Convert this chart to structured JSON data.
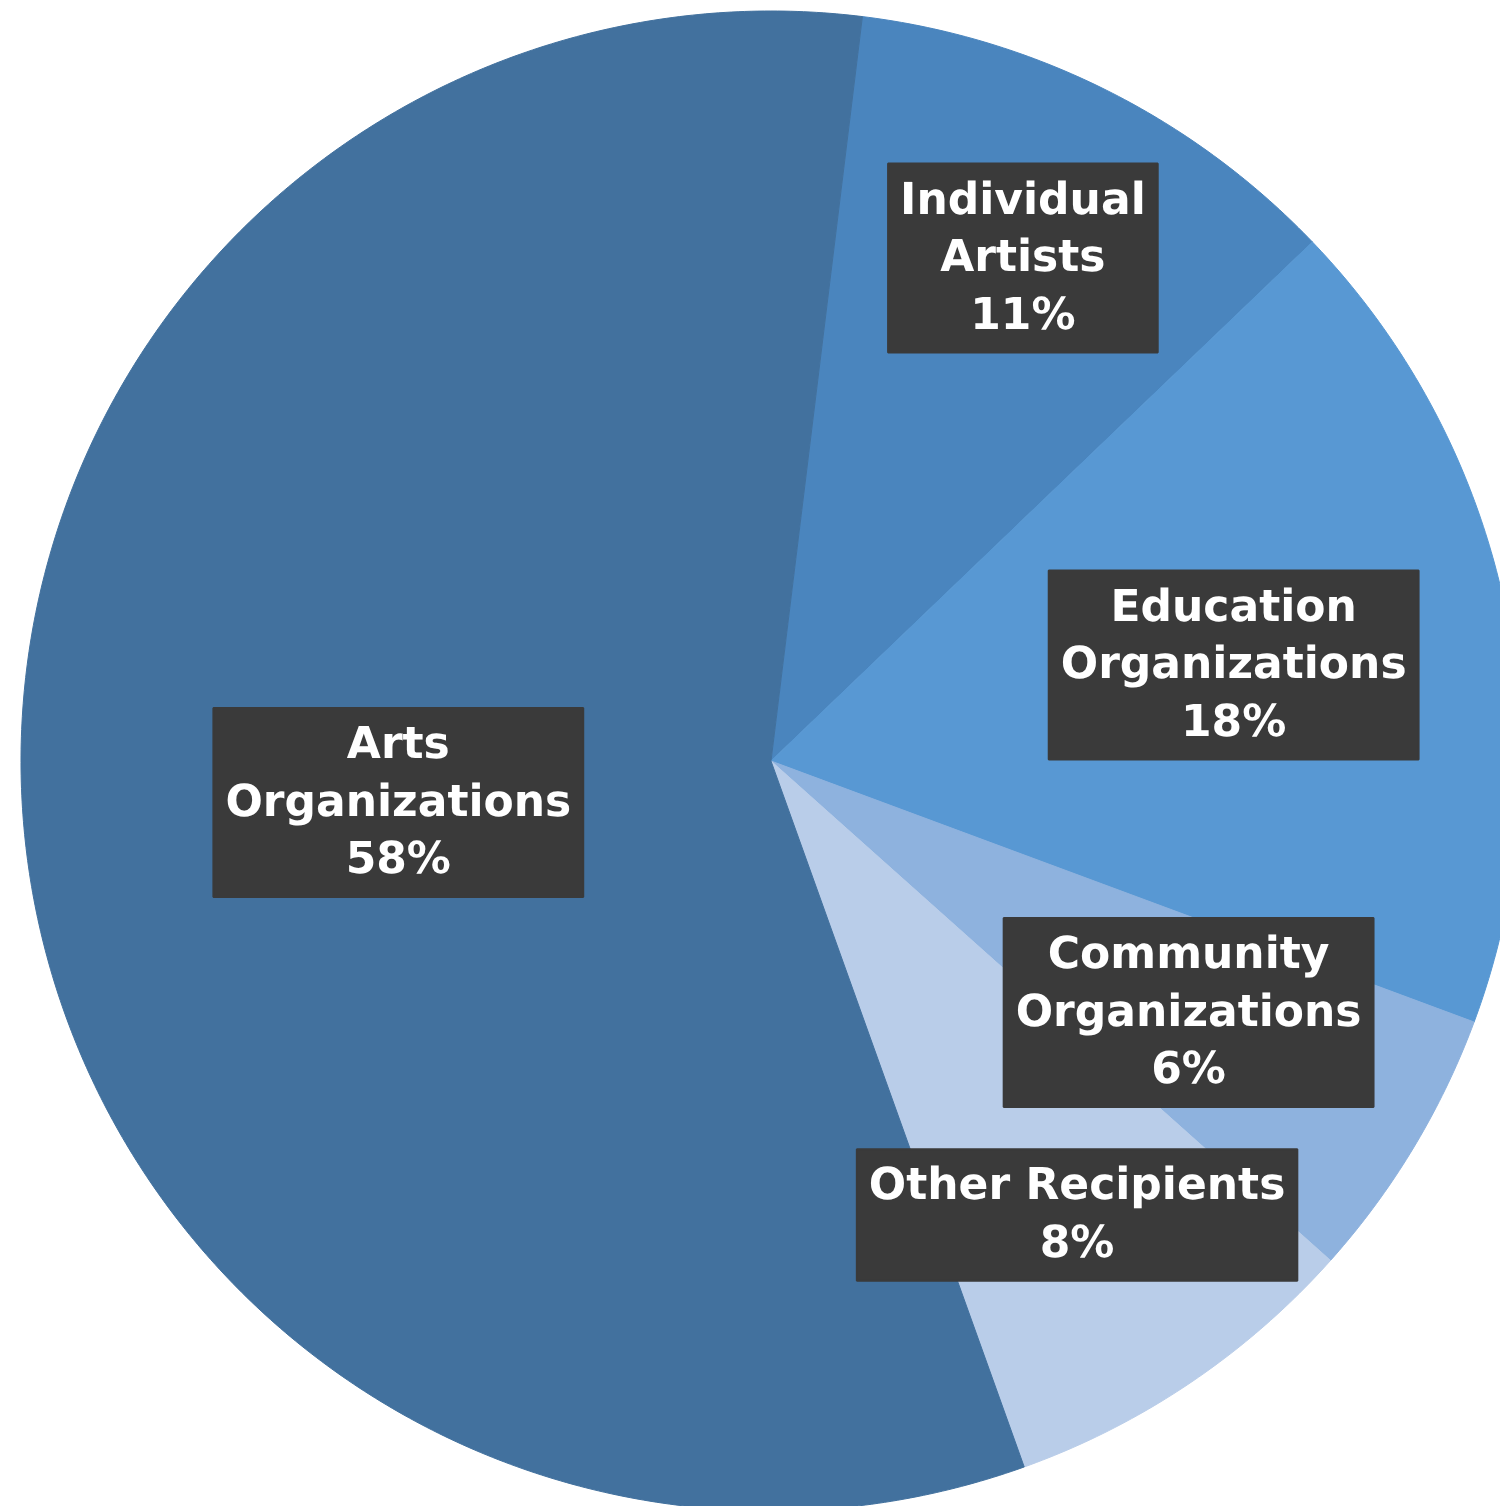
{
  "chart_data": {
    "type": "pie",
    "categories": [
      "Individual\nArtists",
      "Education\nOrganizations",
      "Community\nOrganizations",
      "Other Recipients",
      "Arts\nOrganizations"
    ],
    "values": [
      11,
      18,
      6,
      8,
      58
    ],
    "value_labels": [
      "11%",
      "18%",
      "6%",
      "8%",
      "58%"
    ],
    "colors": [
      "#4a85be",
      "#5898d3",
      "#8eb2de",
      "#b9cde9",
      "#42719e"
    ]
  }
}
